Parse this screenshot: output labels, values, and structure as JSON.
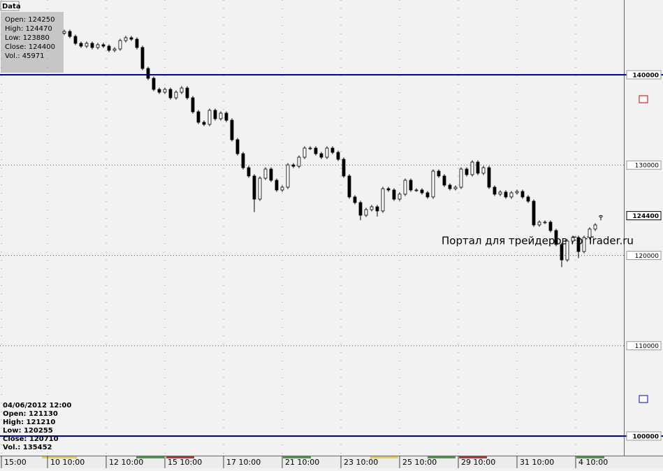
{
  "tab": "Data",
  "info_top": [
    "Open: 124250",
    "High: 124470",
    "Low: 123880",
    "Close: 124400",
    "Vol.: 45971"
  ],
  "info_bottom": [
    "04/06/2012 12:00",
    "Open: 121130",
    "High: 121210",
    "Low: 120255",
    "Close: 120710",
    "Vol.: 135452"
  ],
  "watermark": "Портал для трейдеров ForTrader.ru",
  "chart_data": {
    "type": "candlestick",
    "xlim": [
      -11.5,
      100.125
    ],
    "xticks": [
      {
        "value": -11.25,
        "label": "15:00"
      },
      {
        "value": -3,
        "label": "10 10:00"
      },
      {
        "value": 7.5,
        "label": "12 10:00"
      },
      {
        "value": 18,
        "label": "15 10:00"
      },
      {
        "value": 28.5,
        "label": "17 10:00"
      },
      {
        "value": 39,
        "label": "21 10:00"
      },
      {
        "value": 49.5,
        "label": "23 10:00"
      },
      {
        "value": 60,
        "label": "25 10:00"
      },
      {
        "value": 70.5,
        "label": "29 10:00"
      },
      {
        "value": 81,
        "label": "31 10:00"
      },
      {
        "value": 91.5,
        "label": "4 10:00"
      }
    ],
    "ylim": [
      97830,
      148280
    ],
    "yticks": [
      100000,
      110000,
      120000,
      130000,
      140000
    ],
    "grid": true,
    "level_lines": {
      "values": [
        140000,
        100000
      ],
      "color": "#0000b4"
    },
    "color": "#000000",
    "open": [
      144600,
      144800,
      144250,
      143480,
      143170,
      143480,
      143020,
      143330,
      143170,
      142710,
      142860,
      143790,
      144100,
      143940,
      143020,
      140700,
      139610,
      138380,
      138070,
      138380,
      137450,
      138070,
      138530,
      137450,
      135900,
      134740,
      134510,
      136060,
      135130,
      135750,
      134970,
      132810,
      131260,
      129710,
      128790,
      126230,
      128550,
      129560,
      128320,
      127240,
      127550,
      130020,
      129870,
      130870,
      131880,
      131880,
      131260,
      130870,
      131880,
      131410,
      130640,
      128790,
      126470,
      125850,
      124450,
      125070,
      125380,
      124920,
      127390,
      127240,
      126230,
      126780,
      128320,
      127240,
      127240,
      126930,
      126470,
      129330,
      128790,
      127780,
      127390,
      127550,
      129560,
      128940,
      130330,
      129100,
      129710,
      127550,
      126780,
      127010,
      126470,
      126930,
      127080,
      126470,
      126000,
      123370,
      123680,
      123680,
      122750,
      121210,
      119500,
      121590,
      121980,
      120430,
      121980,
      122910,
      124250
    ],
    "high": [
      145000,
      145000,
      144450,
      143680,
      143680,
      143680,
      143530,
      143530,
      143370,
      143060,
      143990,
      144300,
      144300,
      144140,
      143220,
      140900,
      139810,
      138580,
      138580,
      138580,
      138270,
      138730,
      138730,
      137650,
      136100,
      134940,
      136260,
      136260,
      135950,
      135950,
      135170,
      133010,
      131460,
      129910,
      128990,
      128750,
      129760,
      129760,
      128520,
      127750,
      130220,
      130220,
      131070,
      132080,
      132080,
      132080,
      131460,
      132080,
      132080,
      131610,
      130840,
      128990,
      126670,
      126050,
      125270,
      125580,
      125580,
      127590,
      127590,
      127440,
      126980,
      128520,
      128520,
      127440,
      127440,
      127130,
      129530,
      129530,
      128990,
      127980,
      127750,
      129760,
      129760,
      130530,
      130530,
      129910,
      129910,
      127750,
      127210,
      127210,
      127130,
      127280,
      127280,
      126670,
      126200,
      123880,
      123880,
      123880,
      122950,
      121410,
      121790,
      122180,
      122180,
      122180,
      123110,
      123570,
      124470
    ],
    "low": [
      144400,
      144050,
      143280,
      142970,
      142970,
      142820,
      142820,
      142970,
      142510,
      142510,
      142660,
      143590,
      143740,
      142820,
      140500,
      139410,
      138180,
      137870,
      137870,
      137250,
      137250,
      137870,
      137250,
      135700,
      134540,
      134310,
      134310,
      134930,
      134930,
      134770,
      132610,
      131060,
      129510,
      128590,
      124800,
      126030,
      128350,
      128120,
      127040,
      127040,
      127350,
      129670,
      129670,
      130670,
      131680,
      131060,
      130670,
      130670,
      131210,
      130440,
      128590,
      126270,
      125650,
      123900,
      124250,
      124870,
      124300,
      124720,
      127040,
      126030,
      126030,
      126580,
      127040,
      127040,
      126730,
      126270,
      126270,
      128590,
      127580,
      127190,
      127190,
      127350,
      128740,
      128740,
      128900,
      128900,
      127350,
      126580,
      126580,
      126270,
      126270,
      126730,
      126270,
      125800,
      123170,
      123170,
      123480,
      122550,
      121010,
      118700,
      119300,
      121390,
      119700,
      120230,
      121780,
      122710,
      123880
    ],
    "close": [
      144800,
      144250,
      143480,
      143170,
      143480,
      143020,
      143330,
      143170,
      142710,
      142860,
      143790,
      144100,
      143940,
      143020,
      140700,
      139610,
      138380,
      138070,
      138380,
      137450,
      138070,
      138530,
      137450,
      135900,
      134740,
      134510,
      136060,
      135130,
      135750,
      134970,
      132810,
      131260,
      129710,
      128790,
      126230,
      128550,
      129560,
      128320,
      127240,
      127550,
      130020,
      129870,
      130870,
      131880,
      131880,
      131260,
      130870,
      131880,
      131410,
      130640,
      128790,
      126470,
      125850,
      124450,
      125070,
      125380,
      124920,
      127390,
      127240,
      126230,
      126780,
      128320,
      127240,
      127240,
      126930,
      126470,
      129330,
      128790,
      127780,
      127390,
      127550,
      129560,
      128940,
      130330,
      129100,
      129710,
      127550,
      126780,
      127010,
      126470,
      126930,
      127080,
      126470,
      126000,
      123370,
      123680,
      123680,
      122750,
      121210,
      119500,
      121590,
      121980,
      120430,
      121980,
      122910,
      123370,
      124400
    ]
  }
}
